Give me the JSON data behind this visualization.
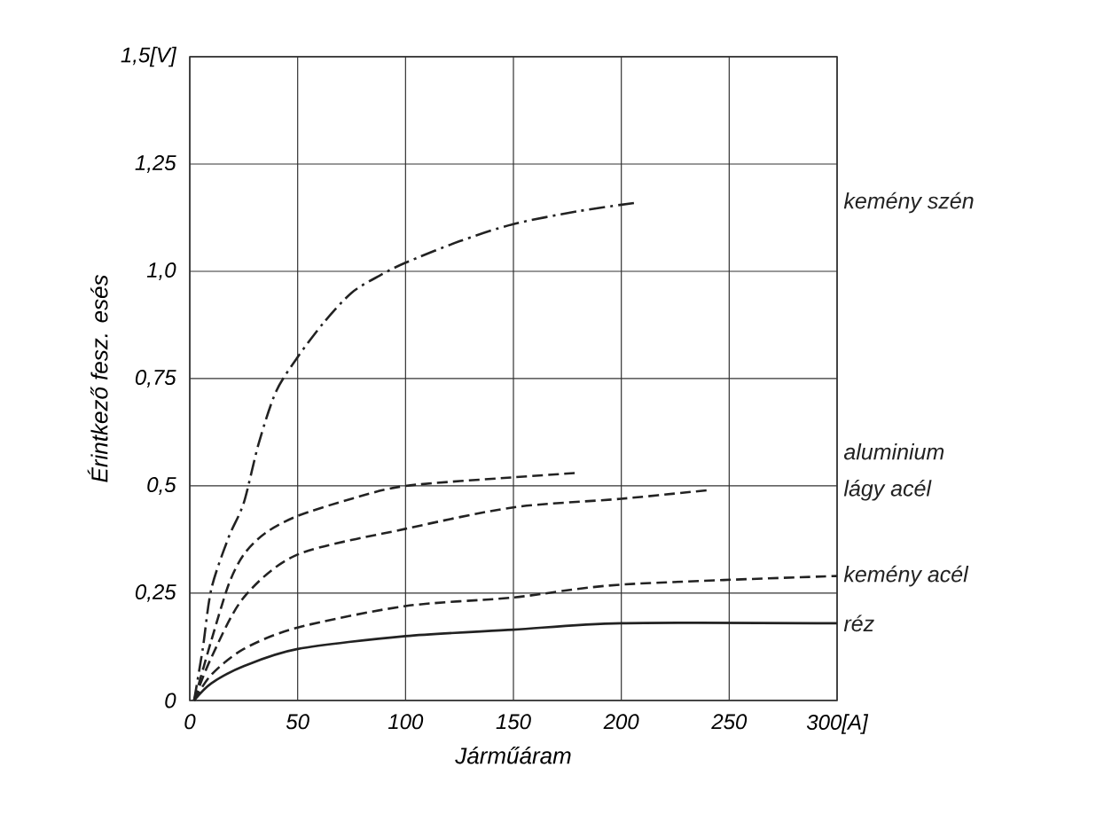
{
  "chart_data": {
    "type": "line",
    "xlabel": "Járműáram",
    "ylabel": "Érintkező fesz. esés",
    "xlim": [
      0,
      300
    ],
    "ylim": [
      0,
      1.5
    ],
    "xticks": [
      0,
      50,
      100,
      150,
      200,
      250,
      {
        "value": 300,
        "label": "300[A]"
      }
    ],
    "yticks": [
      0,
      {
        "value": 0.25,
        "label": "0,25"
      },
      {
        "value": 0.5,
        "label": "0,5"
      },
      {
        "value": 0.75,
        "label": "0,75"
      },
      {
        "value": 1,
        "label": "1,0"
      },
      {
        "value": 1.25,
        "label": "1,25"
      },
      {
        "value": 1.5,
        "label": "1,5[V]"
      }
    ],
    "grid": true,
    "legend": false,
    "marker": "none",
    "series": [
      {
        "name": "kemény szén",
        "color": "#222222",
        "line_style": "dashdot",
        "x": [
          2,
          6,
          10,
          18,
          25,
          32,
          40,
          50,
          62,
          75,
          88,
          100,
          125,
          150,
          180,
          207
        ],
        "values": [
          0,
          0.12,
          0.26,
          0.38,
          0.46,
          0.6,
          0.72,
          0.8,
          0.88,
          0.95,
          0.99,
          1.02,
          1.07,
          1.11,
          1.14,
          1.16
        ]
      },
      {
        "name": "aluminium",
        "color": "#222222",
        "line_style": "dashed",
        "x": [
          2,
          10,
          18,
          25,
          35,
          50,
          75,
          100,
          150,
          179
        ],
        "values": [
          0,
          0.14,
          0.27,
          0.34,
          0.39,
          0.43,
          0.47,
          0.5,
          0.52,
          0.53
        ]
      },
      {
        "name": "lágy acél",
        "color": "#222222",
        "line_style": "dashed",
        "x": [
          2,
          10,
          25,
          50,
          100,
          150,
          200,
          240
        ],
        "values": [
          0,
          0.1,
          0.24,
          0.34,
          0.4,
          0.45,
          0.47,
          0.49
        ]
      },
      {
        "name": "kemény acél",
        "color": "#222222",
        "line_style": "dashed",
        "x": [
          2,
          10,
          25,
          50,
          100,
          150,
          200,
          300
        ],
        "values": [
          0,
          0.06,
          0.12,
          0.17,
          0.22,
          0.24,
          0.27,
          0.29
        ]
      },
      {
        "name": "réz",
        "color": "#222222",
        "line_style": "solid",
        "x": [
          2,
          10,
          25,
          50,
          100,
          150,
          200,
          300
        ],
        "values": [
          0,
          0.04,
          0.08,
          0.12,
          0.15,
          0.165,
          0.18,
          0.18
        ]
      }
    ]
  }
}
